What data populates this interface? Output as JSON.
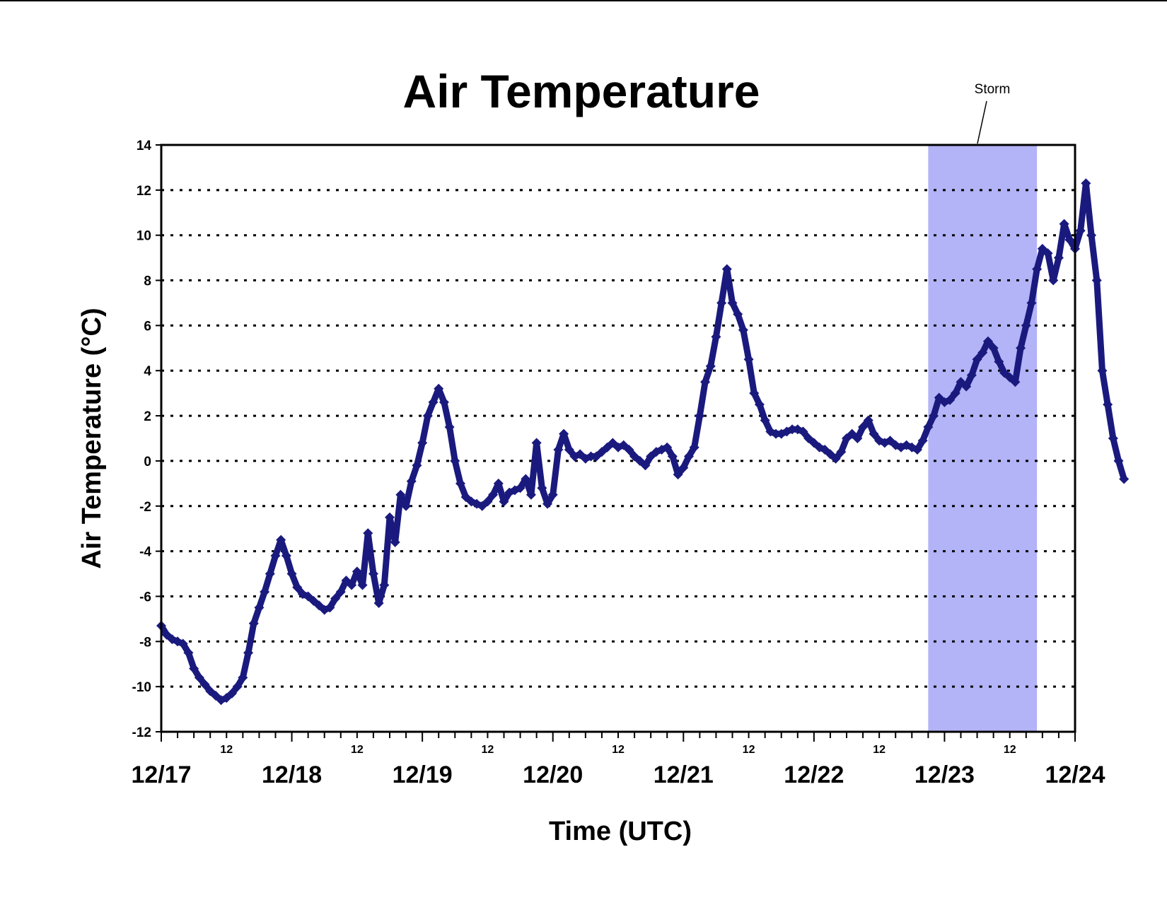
{
  "chart_data": {
    "type": "scatter",
    "title": "Air Temperature",
    "xlabel": "Time (UTC)",
    "ylabel": "Air Temperature (°C)",
    "ylim": [
      -12,
      14
    ],
    "yticks": [
      -12,
      -10,
      -8,
      -6,
      -4,
      -2,
      0,
      2,
      4,
      6,
      8,
      10,
      12,
      14
    ],
    "xlim": [
      "12/17 00:00",
      "12/24 00:00"
    ],
    "day_labels": [
      "12/17",
      "12/18",
      "12/19",
      "12/20",
      "12/21",
      "12/22",
      "12/23",
      "12/24"
    ],
    "hour_label": "12",
    "grid": "horizontal dotted",
    "series_color": "#1a1a7e",
    "shade_color": "#b3b3f7",
    "annotation": {
      "text": "Storm",
      "start": "12/22 21:00",
      "end": "12/23 17:00"
    },
    "points": [
      [
        "12/17 00:00",
        -7.3
      ],
      [
        "12/17 01:00",
        -7.7
      ],
      [
        "12/17 02:00",
        -7.9
      ],
      [
        "12/17 03:00",
        -8.0
      ],
      [
        "12/17 04:00",
        -8.1
      ],
      [
        "12/17 05:00",
        -8.5
      ],
      [
        "12/17 06:00",
        -9.2
      ],
      [
        "12/17 07:00",
        -9.6
      ],
      [
        "12/17 08:00",
        -9.9
      ],
      [
        "12/17 09:00",
        -10.2
      ],
      [
        "12/17 10:00",
        -10.4
      ],
      [
        "12/17 11:00",
        -10.6
      ],
      [
        "12/17 12:00",
        -10.5
      ],
      [
        "12/17 13:00",
        -10.3
      ],
      [
        "12/17 14:00",
        -10.0
      ],
      [
        "12/17 15:00",
        -9.6
      ],
      [
        "12/17 16:00",
        -8.5
      ],
      [
        "12/17 17:00",
        -7.2
      ],
      [
        "12/17 18:00",
        -6.5
      ],
      [
        "12/17 19:00",
        -5.8
      ],
      [
        "12/17 20:00",
        -5.0
      ],
      [
        "12/17 21:00",
        -4.2
      ],
      [
        "12/17 22:00",
        -3.5
      ],
      [
        "12/17 23:00",
        -4.2
      ],
      [
        "12/18 00:00",
        -5.0
      ],
      [
        "12/18 01:00",
        -5.6
      ],
      [
        "12/18 02:00",
        -5.9
      ],
      [
        "12/18 03:00",
        -6.0
      ],
      [
        "12/18 04:00",
        -6.2
      ],
      [
        "12/18 05:00",
        -6.4
      ],
      [
        "12/18 06:00",
        -6.6
      ],
      [
        "12/18 07:00",
        -6.5
      ],
      [
        "12/18 08:00",
        -6.1
      ],
      [
        "12/18 09:00",
        -5.8
      ],
      [
        "12/18 10:00",
        -5.3
      ],
      [
        "12/18 11:00",
        -5.5
      ],
      [
        "12/18 12:00",
        -4.9
      ],
      [
        "12/18 13:00",
        -5.5
      ],
      [
        "12/18 14:00",
        -3.2
      ],
      [
        "12/18 15:00",
        -5.0
      ],
      [
        "12/18 16:00",
        -6.3
      ],
      [
        "12/18 17:00",
        -5.5
      ],
      [
        "12/18 18:00",
        -2.5
      ],
      [
        "12/18 19:00",
        -3.6
      ],
      [
        "12/18 20:00",
        -1.5
      ],
      [
        "12/18 21:00",
        -2.0
      ],
      [
        "12/18 22:00",
        -0.9
      ],
      [
        "12/18 23:00",
        -0.2
      ],
      [
        "12/19 00:00",
        0.8
      ],
      [
        "12/19 01:00",
        2.0
      ],
      [
        "12/19 02:00",
        2.6
      ],
      [
        "12/19 03:00",
        3.2
      ],
      [
        "12/19 04:00",
        2.6
      ],
      [
        "12/19 05:00",
        1.5
      ],
      [
        "12/19 06:00",
        0.0
      ],
      [
        "12/19 07:00",
        -1.0
      ],
      [
        "12/19 08:00",
        -1.6
      ],
      [
        "12/19 09:00",
        -1.8
      ],
      [
        "12/19 10:00",
        -1.9
      ],
      [
        "12/19 11:00",
        -2.0
      ],
      [
        "12/19 12:00",
        -1.8
      ],
      [
        "12/19 13:00",
        -1.5
      ],
      [
        "12/19 14:00",
        -1.0
      ],
      [
        "12/19 15:00",
        -1.8
      ],
      [
        "12/19 16:00",
        -1.4
      ],
      [
        "12/19 17:00",
        -1.3
      ],
      [
        "12/19 18:00",
        -1.2
      ],
      [
        "12/19 19:00",
        -0.8
      ],
      [
        "12/19 20:00",
        -1.5
      ],
      [
        "12/19 21:00",
        0.8
      ],
      [
        "12/19 22:00",
        -1.2
      ],
      [
        "12/19 23:00",
        -1.9
      ],
      [
        "12/20 00:00",
        -1.5
      ],
      [
        "12/20 01:00",
        0.5
      ],
      [
        "12/20 02:00",
        1.2
      ],
      [
        "12/20 03:00",
        0.5
      ],
      [
        "12/20 04:00",
        0.2
      ],
      [
        "12/20 05:00",
        0.3
      ],
      [
        "12/20 06:00",
        0.1
      ],
      [
        "12/20 07:00",
        0.2
      ],
      [
        "12/20 08:00",
        0.2
      ],
      [
        "12/20 09:00",
        0.4
      ],
      [
        "12/20 10:00",
        0.6
      ],
      [
        "12/20 11:00",
        0.8
      ],
      [
        "12/20 12:00",
        0.6
      ],
      [
        "12/20 13:00",
        0.7
      ],
      [
        "12/20 14:00",
        0.5
      ],
      [
        "12/20 15:00",
        0.2
      ],
      [
        "12/20 16:00",
        0.0
      ],
      [
        "12/20 17:00",
        -0.2
      ],
      [
        "12/20 18:00",
        0.2
      ],
      [
        "12/20 19:00",
        0.4
      ],
      [
        "12/20 20:00",
        0.5
      ],
      [
        "12/20 21:00",
        0.6
      ],
      [
        "12/20 22:00",
        0.2
      ],
      [
        "12/20 23:00",
        -0.6
      ],
      [
        "12/21 00:00",
        -0.3
      ],
      [
        "12/21 01:00",
        0.2
      ],
      [
        "12/21 02:00",
        0.6
      ],
      [
        "12/21 03:00",
        2.0
      ],
      [
        "12/21 04:00",
        3.5
      ],
      [
        "12/21 05:00",
        4.2
      ],
      [
        "12/21 06:00",
        5.5
      ],
      [
        "12/21 07:00",
        7.0
      ],
      [
        "12/21 08:00",
        8.5
      ],
      [
        "12/21 09:00",
        7.0
      ],
      [
        "12/21 10:00",
        6.5
      ],
      [
        "12/21 11:00",
        5.8
      ],
      [
        "12/21 12:00",
        4.5
      ],
      [
        "12/21 13:00",
        3.0
      ],
      [
        "12/21 14:00",
        2.5
      ],
      [
        "12/21 15:00",
        1.8
      ],
      [
        "12/21 16:00",
        1.3
      ],
      [
        "12/21 17:00",
        1.2
      ],
      [
        "12/21 18:00",
        1.2
      ],
      [
        "12/21 19:00",
        1.3
      ],
      [
        "12/21 20:00",
        1.4
      ],
      [
        "12/21 21:00",
        1.4
      ],
      [
        "12/21 22:00",
        1.3
      ],
      [
        "12/21 23:00",
        1.0
      ],
      [
        "12/22 00:00",
        0.8
      ],
      [
        "12/22 01:00",
        0.6
      ],
      [
        "12/22 02:00",
        0.5
      ],
      [
        "12/22 03:00",
        0.3
      ],
      [
        "12/22 04:00",
        0.1
      ],
      [
        "12/22 05:00",
        0.4
      ],
      [
        "12/22 06:00",
        1.0
      ],
      [
        "12/22 07:00",
        1.2
      ],
      [
        "12/22 08:00",
        1.0
      ],
      [
        "12/22 09:00",
        1.5
      ],
      [
        "12/22 10:00",
        1.8
      ],
      [
        "12/22 11:00",
        1.2
      ],
      [
        "12/22 12:00",
        0.9
      ],
      [
        "12/22 13:00",
        0.8
      ],
      [
        "12/22 14:00",
        0.9
      ],
      [
        "12/22 15:00",
        0.7
      ],
      [
        "12/22 16:00",
        0.6
      ],
      [
        "12/22 17:00",
        0.7
      ],
      [
        "12/22 18:00",
        0.6
      ],
      [
        "12/22 19:00",
        0.5
      ],
      [
        "12/22 20:00",
        0.9
      ],
      [
        "12/22 21:00",
        1.5
      ],
      [
        "12/22 22:00",
        2.0
      ],
      [
        "12/22 23:00",
        2.8
      ],
      [
        "12/23 00:00",
        2.6
      ],
      [
        "12/23 01:00",
        2.7
      ],
      [
        "12/23 02:00",
        3.0
      ],
      [
        "12/23 03:00",
        3.5
      ],
      [
        "12/23 04:00",
        3.3
      ],
      [
        "12/23 05:00",
        3.8
      ],
      [
        "12/23 06:00",
        4.5
      ],
      [
        "12/23 07:00",
        4.8
      ],
      [
        "12/23 08:00",
        5.3
      ],
      [
        "12/23 09:00",
        5.0
      ],
      [
        "12/23 10:00",
        4.4
      ],
      [
        "12/23 11:00",
        3.9
      ],
      [
        "12/23 12:00",
        3.7
      ],
      [
        "12/23 13:00",
        3.5
      ],
      [
        "12/23 14:00",
        5.0
      ],
      [
        "12/23 15:00",
        6.0
      ],
      [
        "12/23 16:00",
        7.0
      ],
      [
        "12/23 17:00",
        8.5
      ],
      [
        "12/23 18:00",
        9.4
      ],
      [
        "12/23 19:00",
        9.2
      ],
      [
        "12/23 20:00",
        8.0
      ],
      [
        "12/23 21:00",
        9.0
      ],
      [
        "12/23 22:00",
        10.5
      ],
      [
        "12/23 23:00",
        9.8
      ],
      [
        "12/24 00:00",
        9.4
      ],
      [
        "12/24 01:00",
        10.2
      ],
      [
        "12/24 02:00",
        12.3
      ],
      [
        "12/24 03:00",
        10.0
      ],
      [
        "12/24 04:00",
        8.0
      ],
      [
        "12/24 05:00",
        4.0
      ],
      [
        "12/24 06:00",
        2.5
      ],
      [
        "12/24 07:00",
        1.0
      ],
      [
        "12/24 08:00",
        0.0
      ],
      [
        "12/24 09:00",
        -0.8
      ]
    ]
  }
}
